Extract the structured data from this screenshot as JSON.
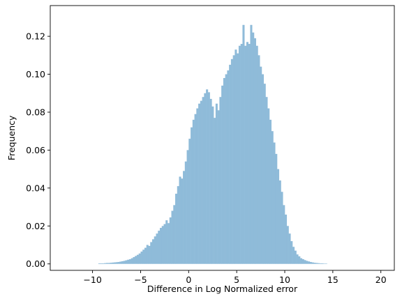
{
  "chart_data": {
    "type": "bar",
    "xlabel": "Difference in Log Normalized error",
    "ylabel": "Frequency",
    "xlim": [
      -14.4,
      21.4
    ],
    "ylim": [
      -0.0034,
      0.1362
    ],
    "xticks": [
      -10,
      -5,
      0,
      5,
      10,
      15,
      20
    ],
    "yticks": [
      0.0,
      0.02,
      0.04,
      0.06,
      0.08,
      0.1,
      0.12
    ],
    "ytick_labels": [
      "0.00",
      "0.02",
      "0.04",
      "0.06",
      "0.08",
      "0.10",
      "0.12"
    ],
    "bar_color": "#8fbbd9",
    "bins": {
      "start": -9.4,
      "width": 0.2,
      "values": [
        0.0003,
        0.0003,
        0.0003,
        0.0004,
        0.0005,
        0.0005,
        0.0006,
        0.0007,
        0.0008,
        0.0009,
        0.001,
        0.0012,
        0.0014,
        0.0016,
        0.0019,
        0.0022,
        0.0025,
        0.003,
        0.0036,
        0.0042,
        0.0048,
        0.0055,
        0.0065,
        0.0075,
        0.0085,
        0.01,
        0.0095,
        0.0115,
        0.013,
        0.0145,
        0.016,
        0.0175,
        0.019,
        0.02,
        0.021,
        0.023,
        0.0215,
        0.0245,
        0.028,
        0.031,
        0.037,
        0.041,
        0.046,
        0.045,
        0.049,
        0.054,
        0.06,
        0.066,
        0.072,
        0.076,
        0.079,
        0.082,
        0.0845,
        0.086,
        0.088,
        0.09,
        0.092,
        0.0905,
        0.087,
        0.083,
        0.077,
        0.0845,
        0.081,
        0.088,
        0.094,
        0.098,
        0.1,
        0.102,
        0.105,
        0.108,
        0.11,
        0.113,
        0.111,
        0.115,
        0.116,
        0.126,
        0.115,
        0.117,
        0.116,
        0.126,
        0.122,
        0.119,
        0.115,
        0.11,
        0.104,
        0.1,
        0.095,
        0.088,
        0.082,
        0.076,
        0.07,
        0.064,
        0.058,
        0.05,
        0.044,
        0.038,
        0.031,
        0.026,
        0.02,
        0.016,
        0.012,
        0.009,
        0.007,
        0.005,
        0.004,
        0.003,
        0.0025,
        0.002,
        0.0016,
        0.0013,
        0.001,
        0.0008,
        0.0006,
        0.0005,
        0.0004,
        0.0003,
        0.0003,
        0.0002,
        0.0002
      ]
    }
  }
}
